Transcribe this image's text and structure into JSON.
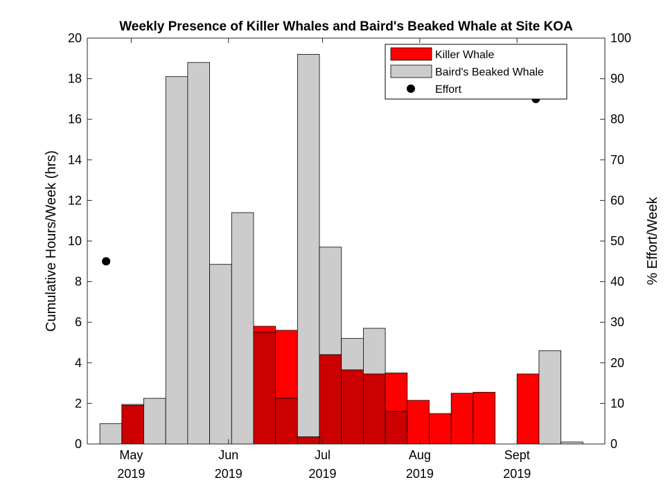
{
  "chart_data": {
    "type": "bar",
    "title": "Weekly Presence of Killer Whales and Baird's Beaked Whale at Site KOA",
    "ylabel": "Cumulative Hours/Week (hrs)",
    "ylabel_right": "% Effort/Week",
    "ylim": [
      0,
      20
    ],
    "ylim_right": [
      0,
      100
    ],
    "yticks": [
      "0",
      "2",
      "4",
      "6",
      "8",
      "10",
      "12",
      "14",
      "16",
      "18",
      "20"
    ],
    "yticks_right": [
      "0",
      "10",
      "20",
      "30",
      "40",
      "50",
      "60",
      "70",
      "80",
      "90",
      "100"
    ],
    "xlim": [
      "2019-04-17",
      "2019-09-29"
    ],
    "xticks": [
      {
        "date": "2019-05-01",
        "month": "May",
        "year": "2019"
      },
      {
        "date": "2019-06-01",
        "month": "Jun",
        "year": "2019"
      },
      {
        "date": "2019-07-01",
        "month": "Jul",
        "year": "2019"
      },
      {
        "date": "2019-08-01",
        "month": "Aug",
        "year": "2019"
      },
      {
        "date": "2019-09-01",
        "month": "Sept",
        "year": "2019"
      }
    ],
    "legend": {
      "position": "top-right",
      "entries": [
        {
          "label": "Killer Whale",
          "color": "#ff0000",
          "marker": "bar"
        },
        {
          "label": "Baird's Beaked Whale",
          "color": "#cccccc",
          "marker": "bar"
        },
        {
          "label": "Effort",
          "color": "#000000",
          "marker": "dot"
        }
      ]
    },
    "colors": {
      "killer_whale": "#ff0000",
      "bairds": "#cccccc",
      "overlap": "#cc0000",
      "effort": "#000000"
    },
    "week_starts": [
      "2019-04-21",
      "2019-04-28",
      "2019-05-05",
      "2019-05-12",
      "2019-05-19",
      "2019-05-26",
      "2019-06-02",
      "2019-06-09",
      "2019-06-16",
      "2019-06-23",
      "2019-06-30",
      "2019-07-07",
      "2019-07-14",
      "2019-07-21",
      "2019-07-28",
      "2019-08-04",
      "2019-08-11",
      "2019-08-18",
      "2019-08-25",
      "2019-09-01",
      "2019-09-08"
    ],
    "series": [
      {
        "name": "Killer Whale",
        "values": [
          0,
          1.9,
          0,
          0,
          0,
          0,
          0,
          5.8,
          5.6,
          0.35,
          4.4,
          3.65,
          3.45,
          3.5,
          2.15,
          1.5,
          2.5,
          2.55,
          0,
          3.45,
          0
        ]
      },
      {
        "name": "Baird's Beaked Whale",
        "values": [
          1.0,
          1.95,
          2.25,
          18.1,
          18.8,
          8.85,
          11.4,
          5.5,
          2.25,
          19.2,
          9.7,
          5.2,
          5.7,
          1.6,
          0,
          0,
          0,
          0,
          0,
          0,
          4.6
        ]
      },
      {
        "name": "Effort",
        "type": "scatter",
        "axis": "right",
        "x": [
          "2019-04-23",
          "2019-09-07"
        ],
        "values": [
          45,
          85
        ]
      }
    ],
    "extra_bars": [
      {
        "series": "Baird's Beaked Whale",
        "week_start": "2019-09-08",
        "value": 0.1,
        "offset_weeks": 1
      }
    ]
  }
}
